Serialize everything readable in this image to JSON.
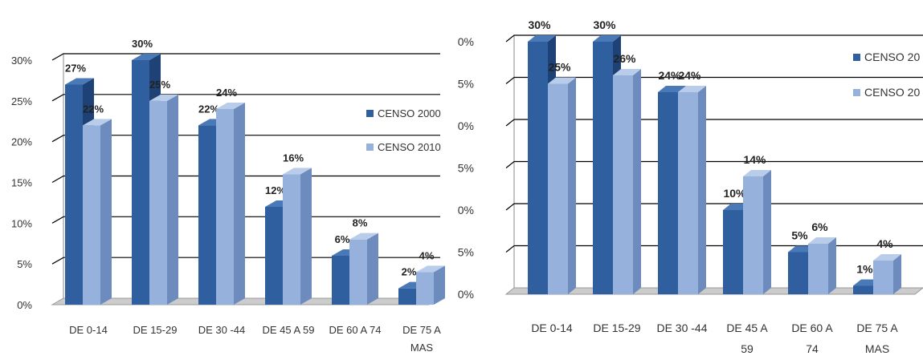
{
  "chart_data": [
    {
      "type": "bar",
      "categories": [
        "DE 0-14",
        "DE 15-29",
        "DE 30 -44",
        "DE 45 A 59",
        "DE 60 A 74",
        "DE 75 A MAS"
      ],
      "category_lines": [
        [
          "DE 0-14"
        ],
        [
          "DE 15-29"
        ],
        [
          "DE 30 -44"
        ],
        [
          "DE 45 A 59"
        ],
        [
          "DE 60 A 74"
        ],
        [
          "DE 75 A",
          "MAS"
        ]
      ],
      "series": [
        {
          "name": "CENSO 2000",
          "values": [
            27,
            30,
            22,
            12,
            6,
            2
          ],
          "labels": [
            "27%",
            "30%",
            "22%",
            "12%",
            "6%",
            "2%"
          ]
        },
        {
          "name": "CENSO 2010",
          "values": [
            22,
            25,
            24,
            16,
            8,
            4
          ],
          "labels": [
            "22%",
            "25%",
            "24%",
            "16%",
            "8%",
            "4%"
          ]
        }
      ],
      "ylim": [
        0,
        30
      ],
      "yticks": [
        "0%",
        "5%",
        "10%",
        "15%",
        "20%",
        "25%",
        "30%"
      ],
      "grid": true,
      "legend": "right",
      "colors": {
        "series1": "#2f5f9e",
        "series1_side": "#1e4275",
        "series1_top": "#4a79b8",
        "series2": "#95b1dc",
        "series2_side": "#6d8cbd",
        "series2_top": "#b9cdeb",
        "grid": "#000000",
        "floor": "#cccccc"
      }
    },
    {
      "type": "bar",
      "categories": [
        "DE 0-14",
        "DE 15-29",
        "DE 30 -44",
        "DE 45 A 59",
        "DE 60 A 74",
        "DE 75 A MAS"
      ],
      "category_lines": [
        [
          "DE 0-14"
        ],
        [
          "DE 15-29"
        ],
        [
          "DE 30 -44"
        ],
        [
          "DE 45 A",
          "59"
        ],
        [
          "DE 60 A",
          "74"
        ],
        [
          "DE 75 A",
          "MAS"
        ]
      ],
      "series": [
        {
          "name": "CENSO 20",
          "values": [
            30,
            30,
            24,
            10,
            5,
            1
          ],
          "labels": [
            "30%",
            "30%",
            "24%",
            "10%",
            "5%",
            "1%"
          ]
        },
        {
          "name": "CENSO 20",
          "values": [
            25,
            26,
            24,
            14,
            6,
            4
          ],
          "labels": [
            "25%",
            "26%",
            "24%",
            "14%",
            "6%",
            "4%"
          ]
        }
      ],
      "ylim": [
        0,
        30
      ],
      "yticks": [
        "0%",
        "5%",
        "0%",
        "5%",
        "0%",
        "5%",
        "0%"
      ],
      "grid": true,
      "legend": "right",
      "colors": {
        "series1": "#2f5f9e",
        "series1_side": "#1e4275",
        "series1_top": "#4a79b8",
        "series2": "#95b1dc",
        "series2_side": "#6d8cbd",
        "series2_top": "#b9cdeb",
        "grid": "#000000",
        "floor": "#cccccc"
      }
    }
  ]
}
